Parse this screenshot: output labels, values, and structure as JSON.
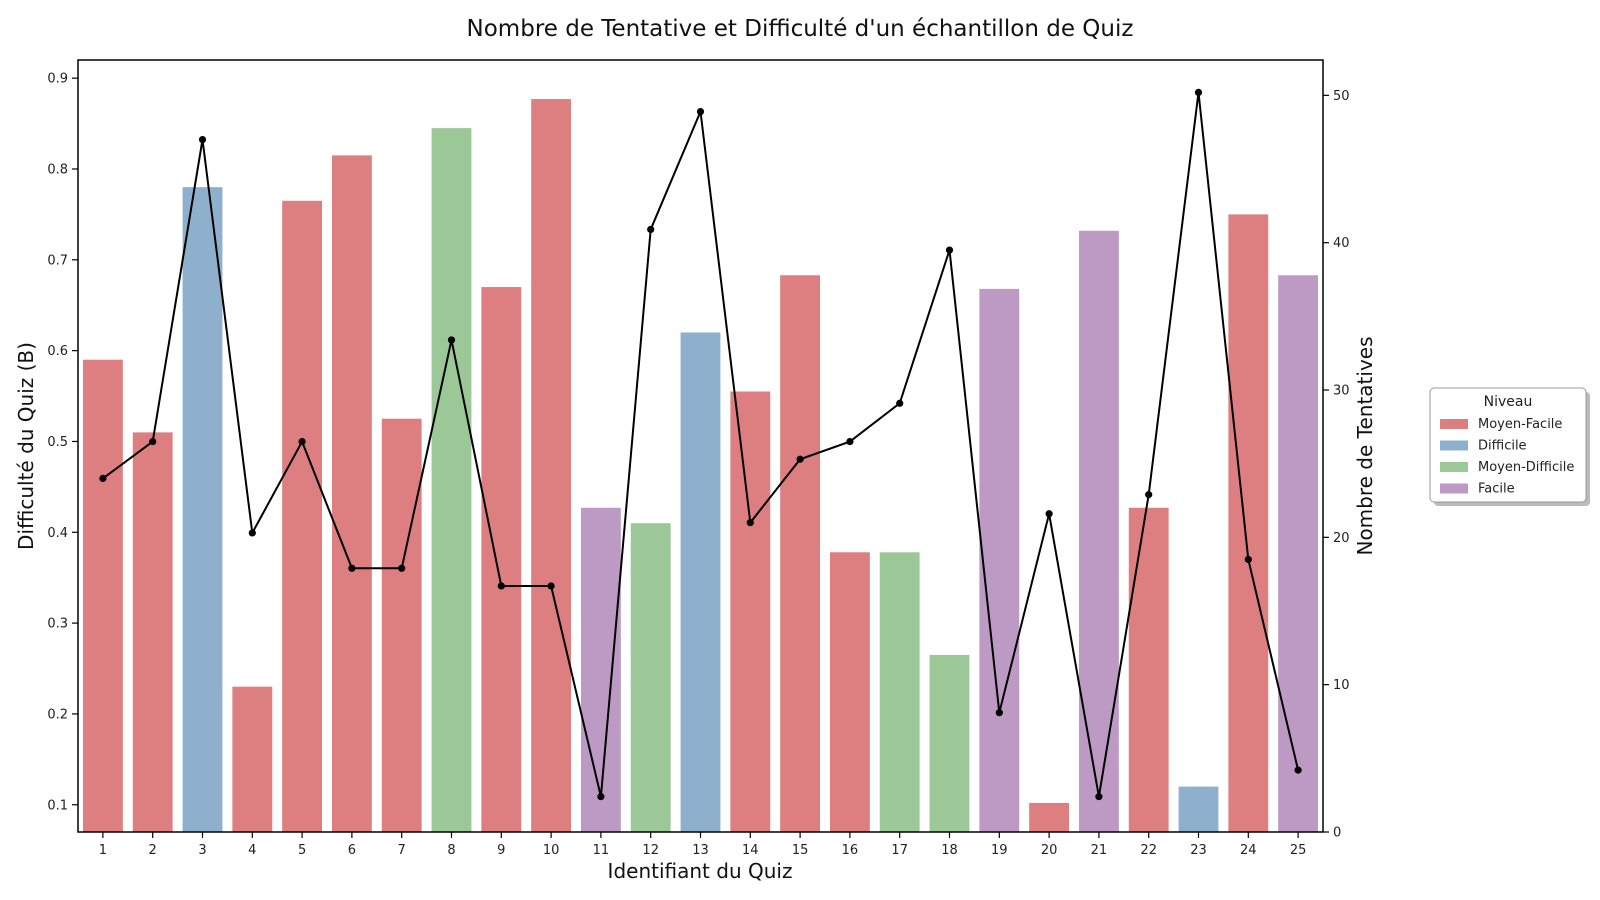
{
  "chart_data": {
    "type": "bar",
    "title": "Nombre de Tentative et Difficulté d'un échantillon de Quiz",
    "xlabel": "Identifiant du Quiz",
    "ylabel": "Difficulté du Quiz (B)",
    "y2label": "Nombre de Tentatives",
    "categories": [
      "1",
      "2",
      "3",
      "4",
      "5",
      "6",
      "7",
      "8",
      "9",
      "10",
      "11",
      "12",
      "13",
      "14",
      "15",
      "16",
      "17",
      "18",
      "19",
      "20",
      "21",
      "22",
      "23",
      "24",
      "25"
    ],
    "ylim": [
      0.07,
      0.92
    ],
    "y2lim": [
      0,
      52.4
    ],
    "yticks": [
      "0.1",
      "0.2",
      "0.3",
      "0.4",
      "0.5",
      "0.6",
      "0.7",
      "0.8",
      "0.9"
    ],
    "y2ticks": [
      "0",
      "10",
      "20",
      "30",
      "40",
      "50"
    ],
    "series": [
      {
        "name": "Difficulté",
        "kind": "bar",
        "values": [
          0.59,
          0.51,
          0.78,
          0.23,
          0.765,
          0.815,
          0.525,
          0.845,
          0.67,
          0.877,
          0.427,
          0.41,
          0.62,
          0.555,
          0.683,
          0.378,
          0.378,
          0.265,
          0.668,
          0.102,
          0.732,
          0.427,
          0.12,
          0.75,
          0.683
        ],
        "levels": [
          "Moyen-Facile",
          "Moyen-Facile",
          "Difficile",
          "Moyen-Facile",
          "Moyen-Facile",
          "Moyen-Facile",
          "Moyen-Facile",
          "Moyen-Difficile",
          "Moyen-Facile",
          "Moyen-Facile",
          "Facile",
          "Moyen-Difficile",
          "Difficile",
          "Moyen-Facile",
          "Moyen-Facile",
          "Moyen-Facile",
          "Moyen-Difficile",
          "Moyen-Difficile",
          "Facile",
          "Moyen-Facile",
          "Facile",
          "Moyen-Facile",
          "Difficile",
          "Moyen-Facile",
          "Facile"
        ]
      },
      {
        "name": "Nombre de Tentatives",
        "kind": "line",
        "axis": "right",
        "values": [
          24,
          26.5,
          47,
          20.3,
          26.5,
          17.9,
          17.9,
          33.4,
          16.7,
          16.7,
          2.4,
          40.9,
          48.9,
          21,
          25.3,
          26.5,
          29.1,
          39.5,
          8.1,
          21.6,
          2.4,
          22.9,
          50.2,
          18.5,
          4.2
        ]
      }
    ],
    "legend": {
      "title": "Niveau",
      "placement": "right",
      "items": [
        {
          "label": "Moyen-Facile",
          "color": "#dd7e80"
        },
        {
          "label": "Difficile",
          "color": "#8fb0cc"
        },
        {
          "label": "Moyen-Difficile",
          "color": "#9bc896"
        },
        {
          "label": "Facile",
          "color": "#bd9ac4"
        }
      ]
    },
    "line_color": "#000000"
  }
}
